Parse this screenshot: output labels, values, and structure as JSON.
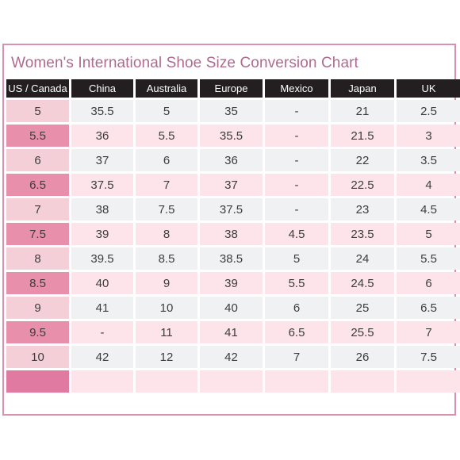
{
  "title": "Women's International Shoe Size Conversion Chart",
  "columns": [
    "US / Canada",
    "China",
    "Australia",
    "Europe",
    "Mexico",
    "Japan",
    "UK"
  ],
  "rows": [
    [
      "5",
      "35.5",
      "5",
      "35",
      "-",
      "21",
      "2.5"
    ],
    [
      "5.5",
      "36",
      "5.5",
      "35.5",
      "-",
      "21.5",
      "3"
    ],
    [
      "6",
      "37",
      "6",
      "36",
      "-",
      "22",
      "3.5"
    ],
    [
      "6.5",
      "37.5",
      "7",
      "37",
      "-",
      "22.5",
      "4"
    ],
    [
      "7",
      "38",
      "7.5",
      "37.5",
      "-",
      "23",
      "4.5"
    ],
    [
      "7.5",
      "39",
      "8",
      "38",
      "4.5",
      "23.5",
      "5"
    ],
    [
      "8",
      "39.5",
      "8.5",
      "38.5",
      "5",
      "24",
      "5.5"
    ],
    [
      "8.5",
      "40",
      "9",
      "39",
      "5.5",
      "24.5",
      "6"
    ],
    [
      "9",
      "41",
      "10",
      "40",
      "6",
      "25",
      "6.5"
    ],
    [
      "9.5",
      "-",
      "11",
      "41",
      "6.5",
      "25.5",
      "7"
    ],
    [
      "10",
      "42",
      "12",
      "42",
      "7",
      "26",
      "7.5"
    ],
    [
      "",
      "",
      "",
      "",
      "",
      "",
      ""
    ]
  ]
}
